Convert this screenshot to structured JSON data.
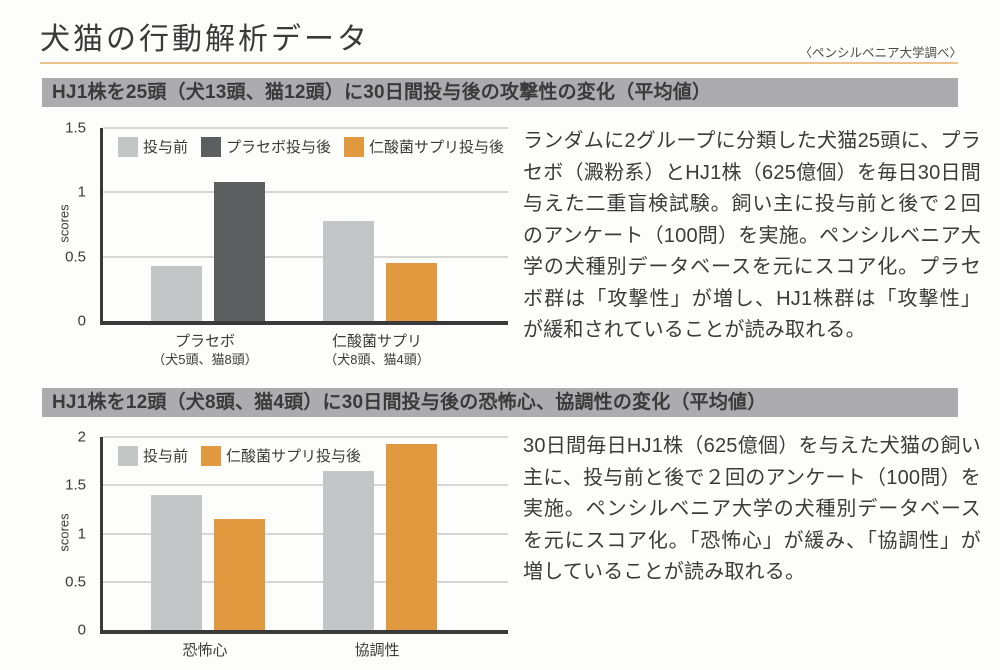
{
  "header": {
    "title": "犬猫の行動解析データ",
    "source_note": "〈ペンシルベニア大学調べ〉"
  },
  "sections": [
    {
      "description": "ランダムに2グループに分類した犬猫25頭に、プラセボ（澱粉系）とHJ1株（625億個）を毎日30日間与えた二重盲検試験。飼い主に投与前と後で２回のアンケート（100問）を実施。ペンシルベニア大学の犬種別データベースを元にスコア化。プラセボ群は「攻撃性」が増し、HJ1株群は「攻撃性」が緩和されていることが読み取れる。"
    },
    {
      "description": "30日間毎日HJ1株（625億個）を与えた犬猫の飼い主に、投与前と後で２回のアンケート（100問）を実施。ペンシルベニア大学の犬種別データベースを元にスコア化。「恐怖心」が緩み、「協調性」が増していることが読み取れる。"
    }
  ],
  "colors": {
    "accent_rule": "#eac28e",
    "banner_bg": "#acacae",
    "bar_light_gray": "#c4c5c7",
    "bar_dark_gray": "#5d5e60",
    "bar_orange": "#e0993f",
    "text": "#3b3b3b",
    "axis": "#3a3a3a",
    "gridline": "#aeaeae"
  },
  "chart_data": [
    {
      "type": "bar",
      "title": "HJ1株を25頭（犬13頭、猫12頭）に30日間投与後の攻撃性の変化（平均値）",
      "xlabel": "",
      "ylabel": "scores",
      "ylim": [
        0,
        1.5
      ],
      "yticks": [
        0,
        0.5,
        1,
        1.5
      ],
      "grid": true,
      "legend_position": "top-inside",
      "categories": [
        "プラセボ",
        "仁酸菌サプリ"
      ],
      "category_subs": [
        "（犬5頭、猫8頭）",
        "（犬8頭、猫4頭）"
      ],
      "series": [
        {
          "name": "投与前",
          "color": "#c4c5c7",
          "values": [
            0.43,
            0.78
          ]
        },
        {
          "name": "プラセボ投与後",
          "color": "#5d5e60",
          "values": [
            1.08,
            null
          ]
        },
        {
          "name": "仁酸菌サプリ投与後",
          "color": "#e0993f",
          "values": [
            null,
            0.45
          ]
        }
      ]
    },
    {
      "type": "bar",
      "title": "HJ1株を12頭（犬8頭、猫4頭）に30日間投与後の恐怖心、協調性の変化（平均値）",
      "xlabel": "",
      "ylabel": "scores",
      "ylim": [
        0,
        2
      ],
      "yticks": [
        0,
        0.5,
        1,
        1.5,
        2
      ],
      "grid": true,
      "legend_position": "top-inside",
      "categories": [
        "恐怖心",
        "協調性"
      ],
      "category_subs": [
        "",
        ""
      ],
      "series": [
        {
          "name": "投与前",
          "color": "#c4c5c7",
          "values": [
            1.4,
            1.65
          ]
        },
        {
          "name": "仁酸菌サプリ投与後",
          "color": "#e0993f",
          "values": [
            1.15,
            1.93
          ]
        }
      ]
    }
  ]
}
